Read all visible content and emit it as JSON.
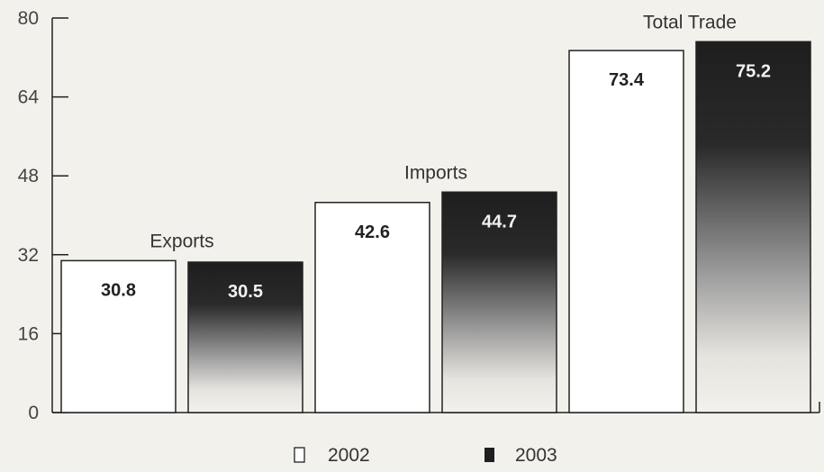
{
  "chart_data": {
    "type": "bar",
    "categories": [
      "Exports",
      "Imports",
      "Total Trade"
    ],
    "series": [
      {
        "name": "2002",
        "values": [
          30.8,
          42.6,
          73.4
        ]
      },
      {
        "name": "2003",
        "values": [
          30.5,
          44.7,
          75.2
        ]
      }
    ],
    "value_labels": [
      [
        "30.8",
        "42.6",
        "73.4"
      ],
      [
        "30.5",
        "44.7",
        "75.2"
      ]
    ],
    "ylim": [
      0,
      80
    ],
    "yticks": [
      "0",
      "16",
      "32",
      "48",
      "64",
      "80"
    ],
    "title": "",
    "xlabel": "",
    "ylabel": "",
    "grid": false,
    "legend": "bottom-center",
    "colors": {
      "2002": "#ffffff",
      "2003": "#2a2a2a",
      "outline": "#222222"
    }
  }
}
